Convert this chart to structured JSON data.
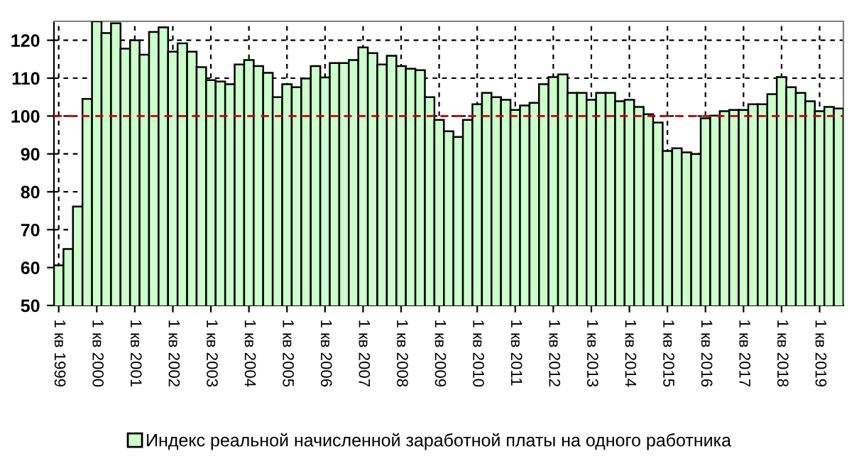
{
  "chart_data": {
    "type": "bar",
    "categories": [
      "1 кв 1999",
      null,
      null,
      null,
      "1 кв 2000",
      null,
      null,
      null,
      "1 кв 2001",
      null,
      null,
      null,
      "1 кв 2002",
      null,
      null,
      null,
      "1 кв 2003",
      null,
      null,
      null,
      "1 кв 2004",
      null,
      null,
      null,
      "1 кв 2005",
      null,
      null,
      null,
      "1 кв 2006",
      null,
      null,
      null,
      "1 кв 2007",
      null,
      null,
      null,
      "1 кв 2008",
      null,
      null,
      null,
      "1 кв 2009",
      null,
      null,
      null,
      "1 кв 2010",
      null,
      null,
      null,
      "1 кв 2011",
      null,
      null,
      null,
      "1 кв 2012",
      null,
      null,
      null,
      "1 кв 2013",
      null,
      null,
      null,
      "1 кв 2014",
      null,
      null,
      null,
      "1 кв 2015",
      null,
      null,
      null,
      "1 кв 2016",
      null,
      null,
      null,
      "1 кв 2017",
      null,
      null,
      null,
      "1 кв 2018",
      null,
      null,
      null,
      "1 кв 2019",
      null,
      null
    ],
    "series": [
      {
        "name": "Индекс реальной начисленной заработной платы на одного работника",
        "color": "#ccffcc",
        "values": [
          60.6,
          64.9,
          76.1,
          104.5,
          125,
          121.9,
          124.5,
          117.8,
          120,
          116.2,
          122.2,
          123.4,
          117,
          119.2,
          117,
          112.9,
          109.5,
          109.1,
          108.4,
          113.6,
          114.8,
          113.2,
          111.4,
          105,
          108.4,
          107.6,
          109.9,
          113.2,
          110.2,
          114,
          114,
          114.8,
          118.1,
          116.6,
          113.6,
          115.9,
          113.2,
          112.5,
          112.1,
          105,
          99,
          96,
          94.5,
          99,
          103.1,
          106.1,
          105,
          104.3,
          101.6,
          102.8,
          103.5,
          108.4,
          110.3,
          111,
          106.1,
          106.1,
          104.3,
          106.1,
          106.1,
          103.9,
          104.3,
          102.4,
          100.5,
          98.3,
          90.8,
          91.5,
          90.4,
          90,
          99.4,
          100.1,
          101.3,
          101.6,
          101.6,
          103.1,
          103.1,
          105.8,
          110.3,
          107.6,
          106.1,
          103.9,
          101.3,
          102.4,
          102
        ]
      }
    ],
    "ylim": [
      50,
      125
    ],
    "yticks": [
      50,
      60,
      70,
      80,
      90,
      100,
      110,
      120
    ],
    "grid": true,
    "legend": "bottom",
    "ref_lines": [
      {
        "axis": "y",
        "value": 100,
        "color": "#cc0000",
        "line_style": "dashed"
      }
    ]
  }
}
